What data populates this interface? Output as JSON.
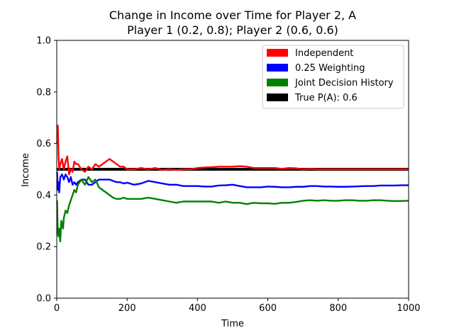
{
  "chart_data": {
    "type": "line",
    "title_line1": "Change in Income over Time for Player 2, A",
    "title_line2": "Player 1 (0.2, 0.8); Player 2 (0.6, 0.6)",
    "xlabel": "Time",
    "ylabel": "Income",
    "xlim": [
      0,
      1000
    ],
    "ylim": [
      0,
      1.0
    ],
    "x_ticks": [
      "0",
      "200",
      "400",
      "600",
      "800",
      "1000"
    ],
    "y_ticks": [
      "0.0",
      "0.2",
      "0.4",
      "0.6",
      "0.8",
      "1.0"
    ],
    "grid": false,
    "legend_position": "top-right",
    "series": [
      {
        "name": "Independent",
        "color": "#ff0000",
        "x": [
          1,
          3,
          5,
          7,
          10,
          15,
          20,
          25,
          30,
          35,
          40,
          45,
          50,
          55,
          60,
          70,
          80,
          90,
          100,
          110,
          120,
          130,
          140,
          150,
          160,
          170,
          180,
          190,
          200,
          220,
          240,
          260,
          280,
          300,
          320,
          340,
          360,
          380,
          400,
          420,
          440,
          460,
          480,
          500,
          520,
          540,
          560,
          580,
          600,
          620,
          640,
          660,
          680,
          700,
          720,
          740,
          760,
          780,
          800,
          820,
          840,
          860,
          880,
          900,
          920,
          940,
          960,
          980,
          1000
        ],
        "y": [
          0.6,
          0.67,
          0.55,
          0.5,
          0.52,
          0.54,
          0.5,
          0.53,
          0.55,
          0.48,
          0.5,
          0.49,
          0.53,
          0.52,
          0.52,
          0.5,
          0.49,
          0.51,
          0.5,
          0.52,
          0.51,
          0.52,
          0.53,
          0.54,
          0.53,
          0.52,
          0.51,
          0.51,
          0.5,
          0.5,
          0.505,
          0.5,
          0.505,
          0.497,
          0.5,
          0.497,
          0.5,
          0.5,
          0.505,
          0.507,
          0.508,
          0.51,
          0.51,
          0.51,
          0.512,
          0.51,
          0.505,
          0.505,
          0.505,
          0.505,
          0.502,
          0.505,
          0.504,
          0.5,
          0.502,
          0.5,
          0.5,
          0.5,
          0.5,
          0.5,
          0.5,
          0.5,
          0.5,
          0.5,
          0.5,
          0.5,
          0.5,
          0.5,
          0.5
        ]
      },
      {
        "name": "0.25 Weighting",
        "color": "#0000ff",
        "x": [
          1,
          3,
          5,
          7,
          10,
          15,
          20,
          25,
          30,
          35,
          40,
          45,
          50,
          55,
          60,
          70,
          80,
          90,
          100,
          110,
          120,
          130,
          140,
          150,
          160,
          170,
          180,
          190,
          200,
          220,
          240,
          260,
          280,
          300,
          320,
          340,
          360,
          380,
          400,
          420,
          440,
          460,
          480,
          500,
          520,
          540,
          560,
          580,
          600,
          620,
          640,
          660,
          680,
          700,
          720,
          740,
          760,
          780,
          800,
          820,
          840,
          860,
          880,
          900,
          920,
          940,
          960,
          980,
          1000
        ],
        "y": [
          0.49,
          0.42,
          0.45,
          0.41,
          0.47,
          0.48,
          0.46,
          0.48,
          0.47,
          0.45,
          0.47,
          0.44,
          0.45,
          0.44,
          0.45,
          0.46,
          0.46,
          0.44,
          0.44,
          0.45,
          0.46,
          0.46,
          0.46,
          0.46,
          0.455,
          0.45,
          0.45,
          0.445,
          0.448,
          0.44,
          0.445,
          0.455,
          0.45,
          0.445,
          0.44,
          0.44,
          0.435,
          0.435,
          0.435,
          0.433,
          0.433,
          0.437,
          0.438,
          0.44,
          0.435,
          0.43,
          0.43,
          0.43,
          0.433,
          0.432,
          0.43,
          0.43,
          0.432,
          0.432,
          0.435,
          0.435,
          0.433,
          0.433,
          0.432,
          0.432,
          0.433,
          0.434,
          0.435,
          0.435,
          0.437,
          0.437,
          0.437,
          0.438,
          0.438
        ]
      },
      {
        "name": "Joint Decision History",
        "color": "#008000",
        "x": [
          1,
          3,
          5,
          7,
          10,
          13,
          15,
          18,
          20,
          25,
          30,
          35,
          40,
          45,
          50,
          55,
          60,
          70,
          80,
          90,
          100,
          110,
          120,
          130,
          140,
          150,
          160,
          170,
          180,
          190,
          200,
          220,
          240,
          260,
          280,
          300,
          320,
          340,
          360,
          380,
          400,
          420,
          440,
          460,
          480,
          500,
          520,
          540,
          560,
          580,
          600,
          620,
          640,
          660,
          680,
          700,
          720,
          740,
          760,
          780,
          800,
          820,
          840,
          860,
          880,
          900,
          920,
          940,
          960,
          980,
          1000
        ],
        "y": [
          0.38,
          0.25,
          0.24,
          0.27,
          0.22,
          0.3,
          0.29,
          0.27,
          0.31,
          0.34,
          0.33,
          0.36,
          0.38,
          0.4,
          0.42,
          0.41,
          0.44,
          0.46,
          0.44,
          0.47,
          0.45,
          0.46,
          0.43,
          0.42,
          0.41,
          0.4,
          0.39,
          0.385,
          0.385,
          0.39,
          0.385,
          0.385,
          0.385,
          0.39,
          0.385,
          0.38,
          0.375,
          0.37,
          0.375,
          0.375,
          0.375,
          0.375,
          0.375,
          0.37,
          0.375,
          0.37,
          0.37,
          0.365,
          0.37,
          0.368,
          0.368,
          0.366,
          0.37,
          0.37,
          0.373,
          0.378,
          0.38,
          0.378,
          0.38,
          0.378,
          0.378,
          0.38,
          0.38,
          0.378,
          0.378,
          0.38,
          0.38,
          0.378,
          0.377,
          0.377,
          0.378
        ]
      },
      {
        "name": "True P(A): 0.6",
        "color": "#000000",
        "x": [
          0,
          1000
        ],
        "y": [
          0.5,
          0.5
        ]
      }
    ]
  }
}
